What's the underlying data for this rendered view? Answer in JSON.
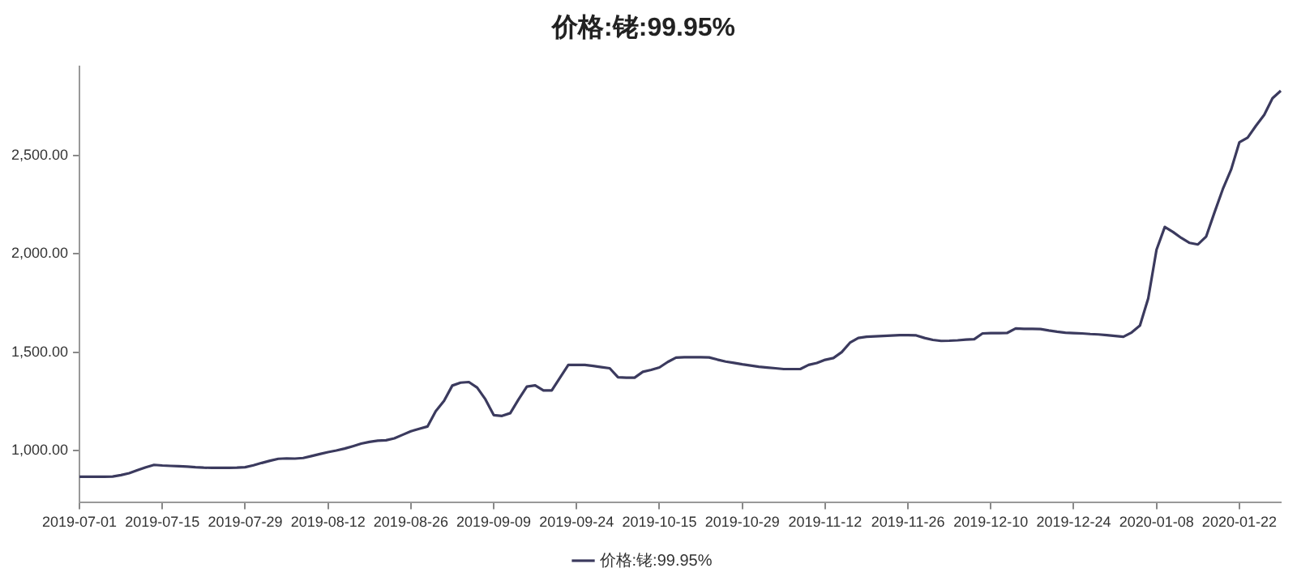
{
  "chart_data": {
    "type": "line",
    "title": "价格:铑:99.95%",
    "categories": [
      "2019-07-01",
      null,
      null,
      null,
      null,
      null,
      null,
      null,
      null,
      null,
      "2019-07-15",
      null,
      null,
      null,
      null,
      null,
      null,
      null,
      null,
      null,
      "2019-07-29",
      null,
      null,
      null,
      null,
      null,
      null,
      null,
      null,
      null,
      "2019-08-12",
      null,
      null,
      null,
      null,
      null,
      null,
      null,
      null,
      null,
      "2019-08-26",
      null,
      null,
      null,
      null,
      null,
      null,
      null,
      null,
      null,
      "2019-09-09",
      null,
      null,
      null,
      null,
      null,
      null,
      null,
      null,
      null,
      "2019-09-24",
      null,
      null,
      null,
      null,
      null,
      null,
      null,
      null,
      null,
      "2019-10-15",
      null,
      null,
      null,
      null,
      null,
      null,
      null,
      null,
      null,
      "2019-10-29",
      null,
      null,
      null,
      null,
      null,
      null,
      null,
      null,
      null,
      "2019-11-12",
      null,
      null,
      null,
      null,
      null,
      null,
      null,
      null,
      null,
      "2019-11-26",
      null,
      null,
      null,
      null,
      null,
      null,
      null,
      null,
      null,
      "2019-12-10",
      null,
      null,
      null,
      null,
      null,
      null,
      null,
      null,
      null,
      "2019-12-24",
      null,
      null,
      null,
      null,
      null,
      null,
      null,
      null,
      null,
      "2020-01-08",
      null,
      null,
      null,
      null,
      null,
      null,
      null,
      null,
      null,
      "2020-01-22",
      null,
      null,
      null,
      null,
      null
    ],
    "series": [
      {
        "name": "价格:铑:99.95%",
        "color": "#3b3a5e",
        "values": [
          867,
          867,
          867,
          867,
          868,
          875,
          885,
          900,
          915,
          927,
          924,
          922,
          920,
          918,
          915,
          913,
          912,
          912,
          912,
          913,
          915,
          925,
          937,
          948,
          958,
          960,
          959,
          962,
          972,
          982,
          992,
          1000,
          1010,
          1022,
          1035,
          1044,
          1050,
          1052,
          1062,
          1080,
          1098,
          1110,
          1122,
          1200,
          1252,
          1330,
          1345,
          1348,
          1320,
          1260,
          1180,
          1176,
          1190,
          1260,
          1325,
          1331,
          1305,
          1305,
          1370,
          1435,
          1435,
          1435,
          1430,
          1424,
          1418,
          1372,
          1370,
          1370,
          1400,
          1410,
          1422,
          1450,
          1472,
          1474,
          1474,
          1474,
          1473,
          1462,
          1452,
          1445,
          1438,
          1432,
          1426,
          1422,
          1418,
          1414,
          1414,
          1414,
          1435,
          1445,
          1461,
          1470,
          1500,
          1548,
          1572,
          1578,
          1580,
          1582,
          1584,
          1586,
          1586,
          1585,
          1572,
          1562,
          1557,
          1558,
          1560,
          1564,
          1566,
          1595,
          1597,
          1597,
          1598,
          1620,
          1618,
          1618,
          1617,
          1610,
          1604,
          1599,
          1597,
          1595,
          1592,
          1590,
          1586,
          1582,
          1578,
          1600,
          1635,
          1773,
          2020,
          2136,
          2110,
          2080,
          2055,
          2047,
          2088,
          2210,
          2328,
          2427,
          2566,
          2590,
          2650,
          2706,
          2790,
          2828
        ]
      }
    ],
    "ylim": [
      735,
      2950
    ],
    "yticks": [
      {
        "value": 1000,
        "label": "1,000.00"
      },
      {
        "value": 1500,
        "label": "1,500.00"
      },
      {
        "value": 2000,
        "label": "2,000.00"
      },
      {
        "value": 2500,
        "label": "2,500.00"
      }
    ],
    "grid": false,
    "legend": "bottom",
    "marker": "none",
    "line_style": "solid"
  }
}
